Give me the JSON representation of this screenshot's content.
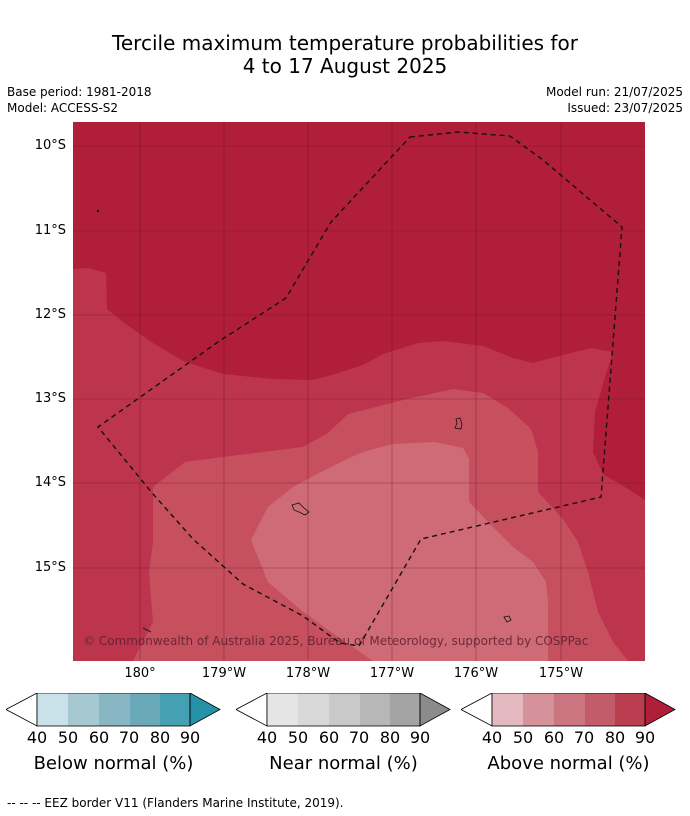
{
  "title": {
    "line1": "Tercile maximum temperature probabilities for",
    "line2": "4 to 17 August 2025"
  },
  "meta": {
    "base_period": "Base period: 1981-2018",
    "model": "Model: ACCESS-S2",
    "model_run": "Model run: 21/07/2025",
    "issued": "Issued: 23/07/2025"
  },
  "map": {
    "latitude_labels": [
      "10°S",
      "11°S",
      "12°S",
      "13°S",
      "14°S",
      "15°S"
    ],
    "longitude_labels": [
      "180°",
      "179°W",
      "178°W",
      "177°W",
      "176°W",
      "175°W"
    ],
    "copyright": "© Commonwealth of Australia 2025, Bureau of Meteorology, supported by COSPPac",
    "colors": {
      "above_90": "#b01e3a",
      "above_80": "#bd354d",
      "above_70": "#c7505f",
      "above_60": "#cf6b77",
      "border": "#111111",
      "grid": "#4a0a16"
    }
  },
  "colorbars": [
    {
      "label": "Below normal (%)",
      "ticks": [
        "40",
        "50",
        "60",
        "70",
        "80",
        "90"
      ],
      "colors": [
        "#ffffff",
        "#c9e2ea",
        "#a6c8d0",
        "#88b7c3",
        "#6aa9b7",
        "#44a0b2",
        "#2592a8"
      ]
    },
    {
      "label": "Near normal (%)",
      "ticks": [
        "40",
        "50",
        "60",
        "70",
        "80",
        "90"
      ],
      "colors": [
        "#ffffff",
        "#e5e5e5",
        "#d8d8d8",
        "#c9c9c9",
        "#b7b7b7",
        "#a4a4a4",
        "#8b8b8b"
      ]
    },
    {
      "label": "Above normal (%)",
      "ticks": [
        "40",
        "50",
        "60",
        "70",
        "80",
        "90"
      ],
      "colors": [
        "#ffffff",
        "#e3b9bf",
        "#d6929b",
        "#cb7580",
        "#c35c6a",
        "#bb3d50",
        "#b01e3a"
      ]
    }
  ],
  "footer": "--  --  -- EEZ border V11 (Flanders Marine Institute, 2019)."
}
